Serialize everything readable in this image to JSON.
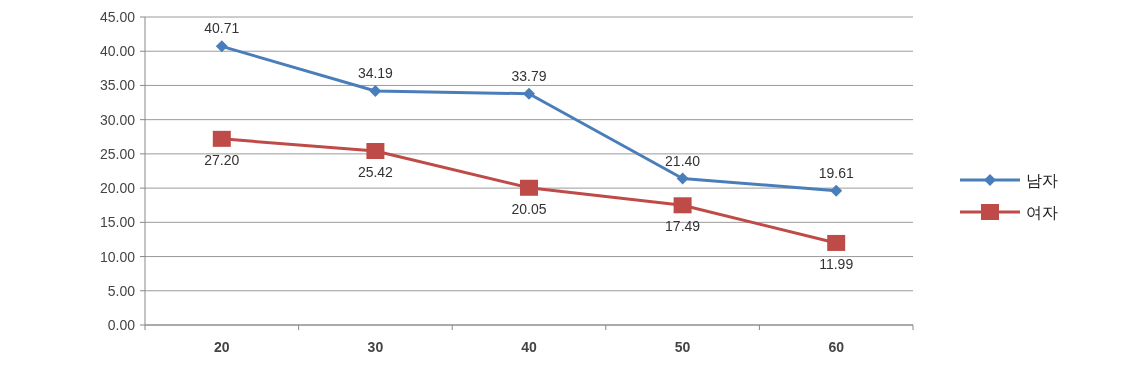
{
  "chart_data": {
    "type": "line",
    "categories": [
      "20",
      "30",
      "40",
      "50",
      "60"
    ],
    "ylim": [
      0,
      45
    ],
    "yticks": [
      {
        "value": 0,
        "label": "0.00"
      },
      {
        "value": 5,
        "label": "5.00"
      },
      {
        "value": 10,
        "label": "10.00"
      },
      {
        "value": 15,
        "label": "15.00"
      },
      {
        "value": 20,
        "label": "20.00"
      },
      {
        "value": 25,
        "label": "25.00"
      },
      {
        "value": 30,
        "label": "30.00"
      },
      {
        "value": 35,
        "label": "35.00"
      },
      {
        "value": 40,
        "label": "40.00"
      },
      {
        "value": 45,
        "label": "45.00"
      }
    ],
    "grid": "y",
    "legend": "right",
    "line_style": "solid",
    "series": [
      {
        "name": "남자",
        "color": "#4a7ebb",
        "marker": "diamond",
        "values": [
          40.71,
          34.19,
          33.79,
          21.4,
          19.61
        ],
        "value_labels": [
          "40.71",
          "34.19",
          "33.79",
          "21.40",
          "19.61"
        ]
      },
      {
        "name": "여자",
        "color": "#be4b48",
        "marker": "square",
        "values": [
          27.2,
          25.42,
          20.05,
          17.49,
          11.99
        ],
        "value_labels": [
          "27.20",
          "25.42",
          "20.05",
          "17.49",
          "11.99"
        ]
      }
    ]
  }
}
